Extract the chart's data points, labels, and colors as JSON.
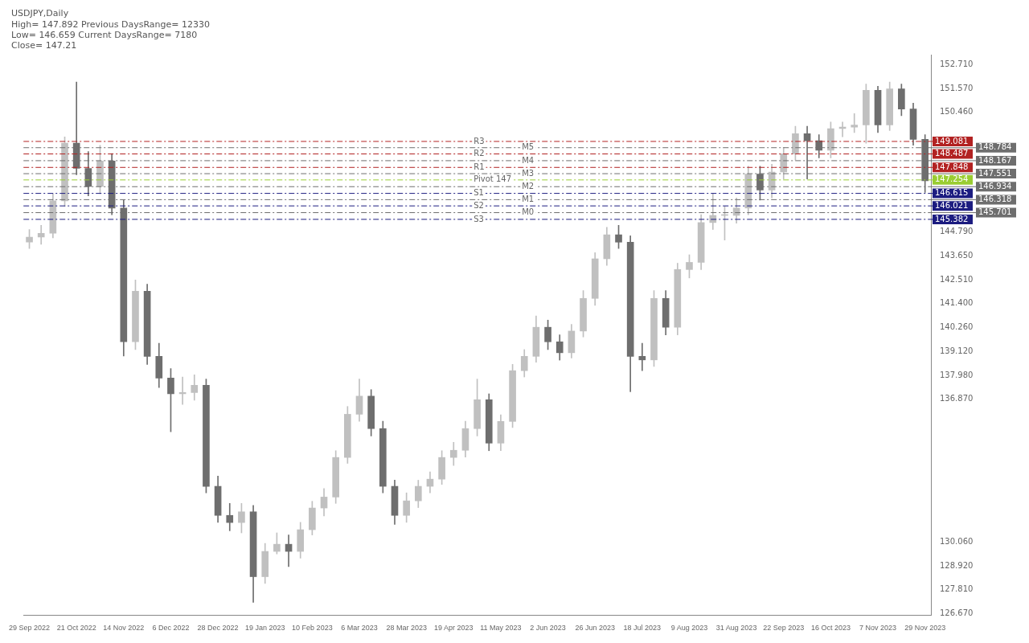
{
  "chart_data": {
    "type": "candlestick",
    "title": "USDJPY,Daily",
    "annotations": [
      "High= 147.892 Previous DaysRange= 12330",
      "Low= 146.659 Current DaysRange= 7180",
      "Close= 147.21",
      {
        "text": "R3",
        "y": 149.081
      },
      {
        "text": "M5",
        "y": 148.784
      },
      {
        "text": "R2",
        "y": 148.487
      },
      {
        "text": "M4",
        "y": 148.167
      },
      {
        "text": "R1",
        "y": 147.848
      },
      {
        "text": "M3",
        "y": 147.551
      },
      {
        "text": "Pivot 147",
        "y": 147.254
      },
      {
        "text": "M2",
        "y": 146.934
      },
      {
        "text": "S1",
        "y": 146.615
      },
      {
        "text": "M1",
        "y": 146.318
      },
      {
        "text": "S2",
        "y": 146.021
      },
      {
        "text": "M0",
        "y": 145.701
      },
      {
        "text": "S3",
        "y": 145.382
      }
    ],
    "categories": [
      "29 Sep 2022",
      null,
      null,
      null,
      "21 Oct 2022",
      null,
      null,
      null,
      "14 Nov 2022",
      null,
      null,
      null,
      "6 Dec 2022",
      null,
      null,
      null,
      "28 Dec 2022",
      null,
      null,
      null,
      "19 Jan 2023",
      null,
      null,
      null,
      "10 Feb 2023",
      null,
      null,
      null,
      "6 Mar 2023",
      null,
      null,
      null,
      "28 Mar 2023",
      null,
      null,
      null,
      "19 Apr 2023",
      null,
      null,
      null,
      "11 May 2023",
      null,
      null,
      null,
      "2 Jun 2023",
      null,
      null,
      null,
      "26 Jun 2023",
      null,
      null,
      null,
      "18 Jul 2023",
      null,
      null,
      null,
      "9 Aug 2023",
      null,
      null,
      null,
      "31 Aug 2023",
      null,
      null,
      null,
      "22 Sep 2023",
      null,
      null,
      null,
      "16 Oct 2023",
      null,
      null,
      null,
      "7 Nov 2023",
      null,
      null,
      null,
      "29 Nov 2023"
    ],
    "ohlc": [
      [
        144.3,
        144.9,
        144.0,
        144.54
      ],
      [
        144.54,
        145.1,
        144.2,
        144.72
      ],
      [
        144.72,
        146.6,
        144.5,
        146.26
      ],
      [
        146.26,
        149.3,
        146.0,
        149.0
      ],
      [
        149.0,
        151.9,
        147.5,
        147.8
      ],
      [
        147.8,
        148.6,
        146.5,
        146.95
      ],
      [
        146.95,
        148.9,
        146.6,
        148.15
      ],
      [
        148.15,
        148.5,
        145.6,
        145.92
      ],
      [
        145.92,
        146.3,
        138.9,
        139.57
      ],
      [
        139.57,
        142.5,
        139.2,
        141.97
      ],
      [
        141.97,
        142.3,
        138.5,
        138.88
      ],
      [
        138.88,
        139.5,
        137.4,
        137.85
      ],
      [
        137.85,
        138.3,
        135.3,
        137.1
      ],
      [
        137.1,
        137.9,
        136.6,
        137.16
      ],
      [
        137.16,
        138.0,
        136.8,
        137.51
      ],
      [
        137.51,
        137.8,
        132.4,
        132.71
      ],
      [
        132.71,
        133.2,
        131.0,
        131.33
      ],
      [
        131.33,
        131.9,
        130.6,
        130.99
      ],
      [
        130.99,
        131.9,
        130.5,
        131.5
      ],
      [
        131.5,
        131.8,
        127.2,
        128.42
      ],
      [
        128.42,
        130.0,
        128.1,
        129.62
      ],
      [
        129.62,
        130.5,
        129.5,
        129.96
      ],
      [
        129.96,
        130.4,
        128.9,
        129.62
      ],
      [
        129.62,
        131.0,
        129.3,
        130.65
      ],
      [
        130.65,
        132.0,
        130.4,
        131.68
      ],
      [
        131.68,
        132.6,
        131.3,
        132.2
      ],
      [
        132.2,
        134.4,
        131.9,
        134.08
      ],
      [
        134.08,
        136.5,
        133.8,
        136.13
      ],
      [
        136.13,
        137.8,
        135.8,
        136.99
      ],
      [
        136.99,
        137.3,
        135.1,
        135.45
      ],
      [
        135.45,
        135.8,
        132.4,
        132.71
      ],
      [
        132.71,
        133.0,
        130.9,
        131.33
      ],
      [
        131.33,
        132.4,
        131.0,
        132.02
      ],
      [
        132.02,
        133.0,
        131.7,
        132.71
      ],
      [
        132.71,
        133.4,
        132.4,
        133.05
      ],
      [
        133.05,
        134.4,
        132.8,
        134.08
      ],
      [
        134.08,
        134.8,
        133.7,
        134.42
      ],
      [
        134.42,
        135.8,
        134.1,
        135.45
      ],
      [
        135.45,
        137.8,
        135.1,
        136.82
      ],
      [
        136.82,
        137.1,
        134.4,
        134.76
      ],
      [
        134.76,
        136.1,
        134.4,
        135.79
      ],
      [
        135.79,
        138.5,
        135.5,
        138.2
      ],
      [
        138.2,
        139.2,
        137.9,
        138.88
      ],
      [
        138.88,
        140.8,
        138.6,
        140.26
      ],
      [
        140.26,
        140.6,
        139.2,
        139.57
      ],
      [
        139.57,
        139.9,
        138.7,
        139.05
      ],
      [
        139.05,
        140.4,
        138.8,
        140.08
      ],
      [
        140.08,
        142.0,
        139.8,
        141.63
      ],
      [
        141.63,
        143.8,
        141.3,
        143.51
      ],
      [
        143.51,
        145.0,
        143.2,
        144.65
      ],
      [
        144.65,
        145.1,
        144.0,
        144.3
      ],
      [
        144.3,
        144.6,
        137.2,
        138.88
      ],
      [
        138.88,
        139.5,
        138.2,
        138.71
      ],
      [
        138.71,
        142.0,
        138.4,
        141.63
      ],
      [
        141.63,
        142.0,
        139.9,
        140.26
      ],
      [
        140.26,
        143.3,
        139.9,
        143.0
      ],
      [
        143.0,
        143.7,
        142.6,
        143.34
      ],
      [
        143.34,
        145.6,
        143.0,
        145.23
      ],
      [
        145.23,
        146.6,
        144.9,
        145.57
      ],
      [
        145.57,
        146.0,
        144.4,
        145.57
      ],
      [
        145.57,
        146.4,
        145.2,
        145.92
      ],
      [
        145.92,
        147.9,
        145.6,
        147.53
      ],
      [
        147.53,
        147.9,
        146.3,
        146.77
      ],
      [
        146.77,
        148.0,
        146.4,
        147.63
      ],
      [
        147.63,
        148.8,
        147.3,
        148.49
      ],
      [
        148.49,
        149.8,
        148.2,
        149.45
      ],
      [
        149.45,
        149.8,
        147.3,
        149.11
      ],
      [
        149.11,
        149.4,
        148.3,
        148.66
      ],
      [
        148.66,
        150.0,
        148.3,
        149.69
      ],
      [
        149.69,
        150.0,
        149.3,
        149.76
      ],
      [
        149.76,
        150.4,
        149.5,
        149.86
      ],
      [
        149.86,
        151.8,
        149.0,
        151.51
      ],
      [
        151.51,
        151.7,
        149.5,
        149.86
      ],
      [
        149.86,
        151.9,
        149.6,
        151.58
      ],
      [
        151.58,
        151.8,
        150.3,
        150.62
      ],
      [
        150.62,
        150.9,
        148.9,
        149.18
      ],
      [
        149.18,
        149.4,
        146.66,
        147.21
      ]
    ],
    "colors": [
      "#c0c0c0",
      "#c0c0c0",
      "#c0c0c0",
      "#c0c0c0",
      "#6e6e6e",
      "#6e6e6e",
      "#c0c0c0",
      "#6e6e6e",
      "#6e6e6e",
      "#c0c0c0",
      "#6e6e6e",
      "#6e6e6e",
      "#6e6e6e",
      "#c0c0c0",
      "#c0c0c0",
      "#6e6e6e",
      "#6e6e6e",
      "#6e6e6e",
      "#c0c0c0",
      "#6e6e6e",
      "#c0c0c0",
      "#c0c0c0",
      "#6e6e6e",
      "#c0c0c0",
      "#c0c0c0",
      "#c0c0c0",
      "#c0c0c0",
      "#c0c0c0",
      "#c0c0c0",
      "#6e6e6e",
      "#6e6e6e",
      "#6e6e6e",
      "#c0c0c0",
      "#c0c0c0",
      "#c0c0c0",
      "#c0c0c0",
      "#c0c0c0",
      "#c0c0c0",
      "#c0c0c0",
      "#6e6e6e",
      "#c0c0c0",
      "#c0c0c0",
      "#c0c0c0",
      "#c0c0c0",
      "#6e6e6e",
      "#6e6e6e",
      "#c0c0c0",
      "#c0c0c0",
      "#c0c0c0",
      "#c0c0c0",
      "#6e6e6e",
      "#6e6e6e",
      "#6e6e6e",
      "#c0c0c0",
      "#6e6e6e",
      "#c0c0c0",
      "#c0c0c0",
      "#c0c0c0",
      "#c0c0c0",
      "#c0c0c0",
      "#c0c0c0",
      "#c0c0c0",
      "#6e6e6e",
      "#c0c0c0",
      "#c0c0c0",
      "#c0c0c0",
      "#6e6e6e",
      "#6e6e6e",
      "#c0c0c0",
      "#c0c0c0",
      "#c0c0c0",
      "#c0c0c0",
      "#6e6e6e",
      "#c0c0c0",
      "#6e6e6e",
      "#6e6e6e",
      "#6e6e6e"
    ],
    "ylim": [
      126.6,
      153.2
    ],
    "yticks": [
      {
        "value": 126.67,
        "label": "126.670"
      },
      {
        "value": 127.81,
        "label": "127.810"
      },
      {
        "value": 128.92,
        "label": "128.920"
      },
      {
        "value": 130.06,
        "label": "130.060"
      },
      {
        "value": 136.87,
        "label": "136.870"
      },
      {
        "value": 137.98,
        "label": "137.980"
      },
      {
        "value": 139.12,
        "label": "139.120"
      },
      {
        "value": 140.26,
        "label": "140.260"
      },
      {
        "value": 141.4,
        "label": "141.400"
      },
      {
        "value": 142.51,
        "label": "142.510"
      },
      {
        "value": 143.65,
        "label": "143.650"
      },
      {
        "value": 144.79,
        "label": "144.790"
      },
      {
        "value": 150.46,
        "label": "150.460"
      },
      {
        "value": 151.57,
        "label": "151.570"
      },
      {
        "value": 152.71,
        "label": "152.710"
      }
    ],
    "ref_lines": [
      {
        "axis": "y",
        "value": 149.081,
        "label": "149.081",
        "color": "#b22222",
        "line_style": "dashed"
      },
      {
        "axis": "y",
        "value": 148.784,
        "label": "148.784",
        "color": "#6e6e6e",
        "line_style": "dashed"
      },
      {
        "axis": "y",
        "value": 148.487,
        "label": "148.487",
        "color": "#b22222",
        "line_style": "dashed"
      },
      {
        "axis": "y",
        "value": 148.167,
        "label": "148.167",
        "color": "#6e6e6e",
        "line_style": "dashed"
      },
      {
        "axis": "y",
        "value": 147.848,
        "label": "147.848",
        "color": "#b22222",
        "line_style": "dashed"
      },
      {
        "axis": "y",
        "value": 147.551,
        "label": "147.551",
        "color": "#6e6e6e",
        "line_style": "dashed"
      },
      {
        "axis": "y",
        "value": 147.254,
        "label": "147.254",
        "color": "#9acd32",
        "line_style": "dashed"
      },
      {
        "axis": "y",
        "value": 146.934,
        "label": "146.934",
        "color": "#6e6e6e",
        "line_style": "dashed"
      },
      {
        "axis": "y",
        "value": 146.615,
        "label": "146.615",
        "color": "#1c1c80",
        "line_style": "dashed"
      },
      {
        "axis": "y",
        "value": 146.318,
        "label": "146.318",
        "color": "#6e6e6e",
        "line_style": "dashed"
      },
      {
        "axis": "y",
        "value": 146.021,
        "label": "146.021",
        "color": "#1c1c80",
        "line_style": "dashed"
      },
      {
        "axis": "y",
        "value": 145.701,
        "label": "145.701",
        "color": "#6e6e6e",
        "line_style": "dashed"
      },
      {
        "axis": "y",
        "value": 145.382,
        "label": "145.382",
        "color": "#1c1c80",
        "line_style": "dashed"
      }
    ],
    "grid": false,
    "legend": false
  }
}
